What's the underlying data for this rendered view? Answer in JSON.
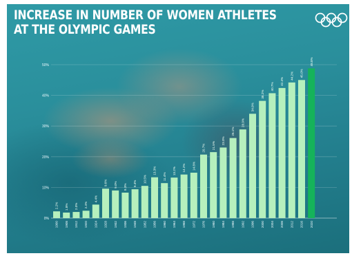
{
  "title_lines": [
    "INCREASE IN NUMBER OF WOMEN ATHLETES",
    "AT THE OLYMPIC GAMES"
  ],
  "logo": "olympic-rings",
  "colors": {
    "bar": "#b6f0bd",
    "bar_last": "#15b35a",
    "label": "#f3fff4",
    "axis_text": "#f0fbff",
    "rings": "#ffffff"
  },
  "chart_data": {
    "type": "bar",
    "ylim": [
      0,
      50
    ],
    "yticks": [
      "0%",
      "10%",
      "20%",
      "30%",
      "40%",
      "50%"
    ],
    "grid": true,
    "categories": [
      "1900",
      "1908",
      "1912",
      "1920",
      "1924",
      "1928",
      "1932",
      "1936",
      "1948",
      "1952",
      "1956",
      "1960",
      "1964",
      "1968",
      "1972",
      "1976",
      "1980",
      "1984",
      "1988",
      "1992",
      "1996",
      "2000",
      "2004",
      "2008",
      "2012",
      "2016",
      "2020"
    ],
    "values": [
      2.2,
      1.8,
      2.0,
      2.4,
      4.4,
      9.6,
      9.0,
      8.3,
      9.4,
      10.5,
      13.3,
      11.4,
      13.2,
      14.2,
      14.8,
      20.7,
      21.5,
      23.0,
      26.1,
      28.9,
      34.0,
      38.2,
      40.7,
      42.4,
      44.2,
      45.0,
      48.8
    ],
    "value_labels": [
      "2.2%",
      "1.8%",
      "2.0%",
      "2.4%",
      "4.4%",
      "9.6%",
      "9.0%",
      "8.3%",
      "9.4%",
      "10.5%",
      "13.3%",
      "11.4%",
      "13.2%",
      "14.2%",
      "14.8%",
      "20.7%",
      "21.5%",
      "23.0%",
      "26.1%",
      "28.9%",
      "34.0%",
      "38.2%",
      "40.7%",
      "42.4%",
      "44.2%",
      "45.0%",
      "48.8%"
    ]
  }
}
